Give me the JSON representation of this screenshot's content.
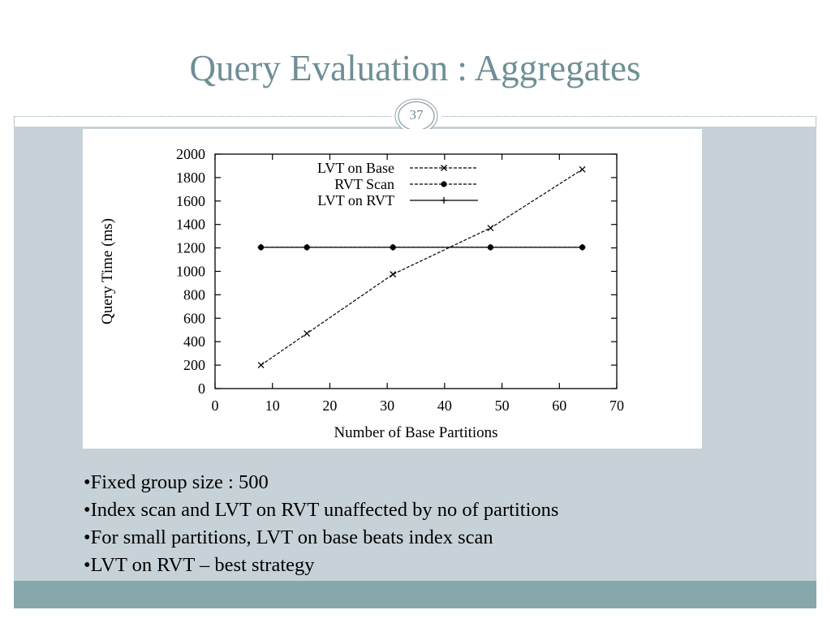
{
  "slide": {
    "title": "Query Evaluation : Aggregates",
    "page_number": "37"
  },
  "bullets": [
    "•Fixed group size : 500",
    "•Index scan and LVT on RVT unaffected by no of partitions",
    "•For small partitions, LVT on base beats index scan",
    "•LVT on RVT – best strategy"
  ],
  "colors": {
    "title": "#6e8f96",
    "content_band": "#c6d2d7",
    "footer_band": "#87a8ab"
  },
  "chart_data": {
    "type": "line",
    "title": "",
    "xlabel": "Number of Base Partitions",
    "ylabel": "Query Time (ms)",
    "xlim": [
      0,
      70
    ],
    "ylim": [
      0,
      2000
    ],
    "x_ticks": [
      "0",
      "10",
      "20",
      "30",
      "40",
      "50",
      "60",
      "70"
    ],
    "y_ticks": [
      "0",
      "200",
      "400",
      "600",
      "800",
      "1000",
      "1200",
      "1400",
      "1600",
      "1800",
      "2000"
    ],
    "legend_position": "top-left",
    "grid": false,
    "series": [
      {
        "name": "LVT on Base",
        "style": "dashed-x",
        "x": [
          8,
          16,
          31,
          48,
          64
        ],
        "values": [
          200,
          470,
          975,
          1370,
          1870
        ]
      },
      {
        "name": "RVT Scan",
        "style": "dashed-star",
        "x": [
          8,
          16,
          31,
          48,
          64
        ],
        "values": [
          1205,
          1205,
          1205,
          1205,
          1205
        ]
      },
      {
        "name": "LVT on RVT",
        "style": "solid-plus",
        "x": [
          8,
          16,
          31,
          48,
          64
        ],
        "values": [
          1205,
          1205,
          1205,
          1205,
          1205
        ]
      }
    ]
  }
}
